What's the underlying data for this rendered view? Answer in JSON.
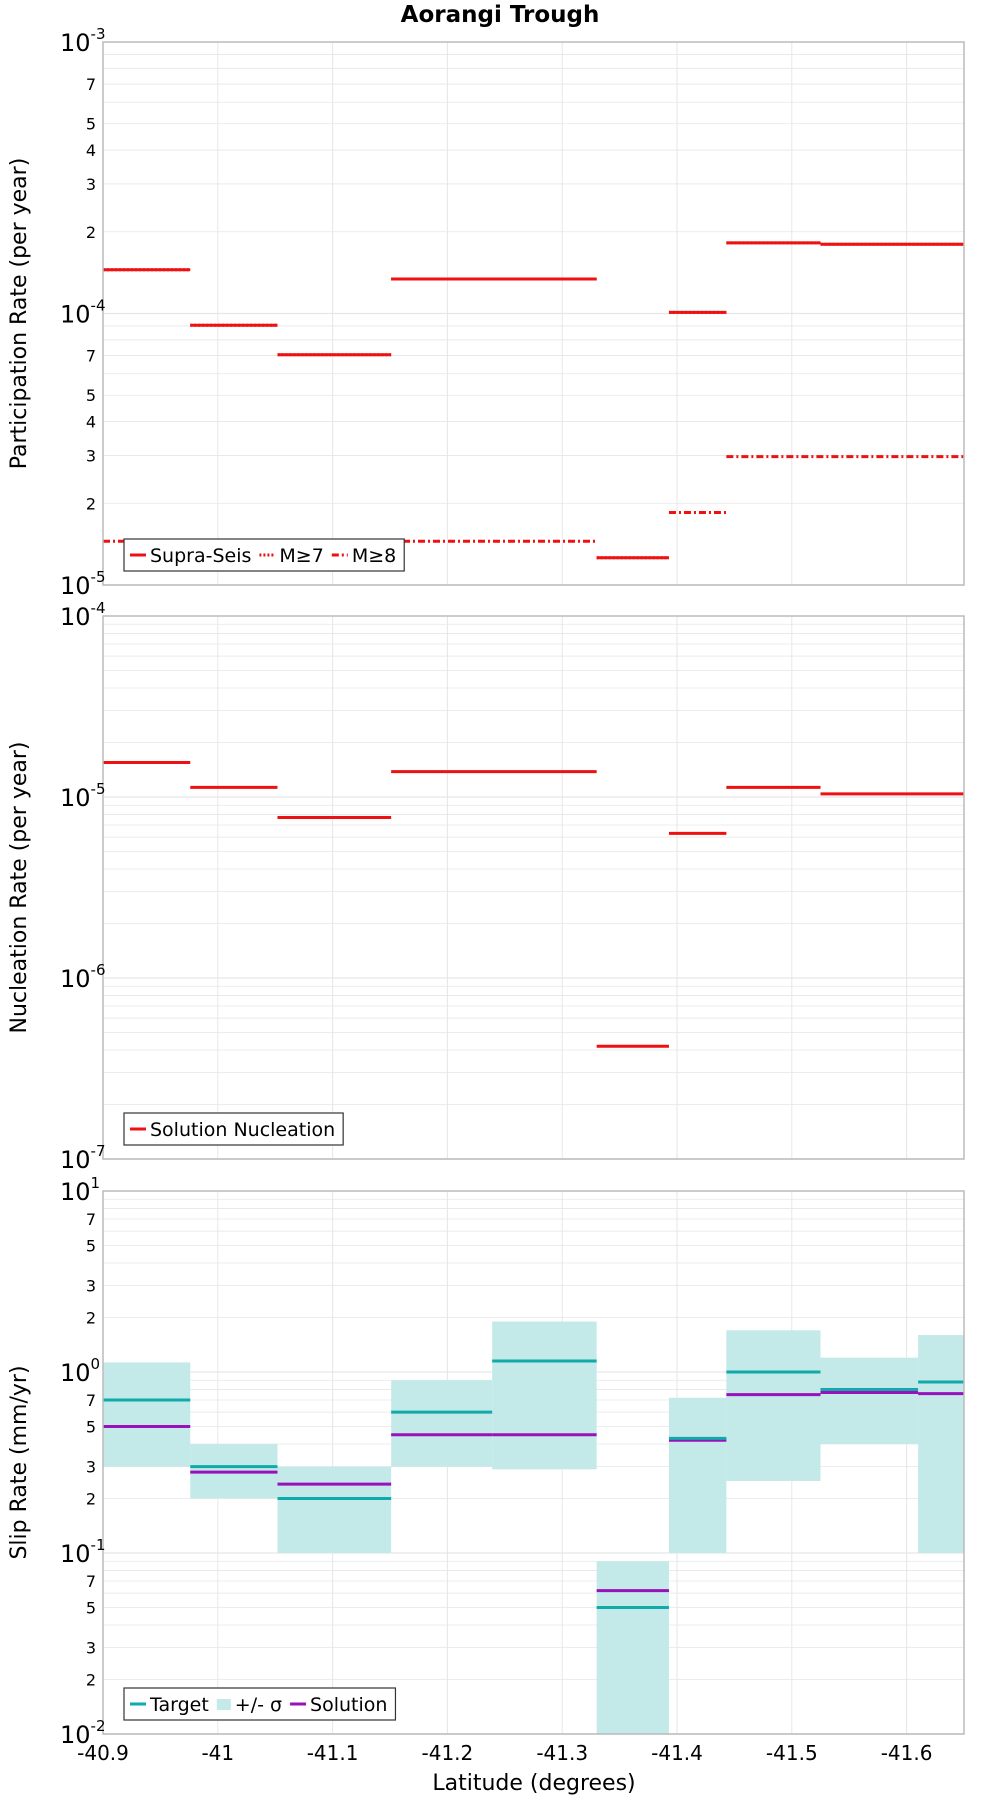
{
  "title": "Aorangi Trough",
  "xlabel": "Latitude (degrees)",
  "x_axis": {
    "range": [
      -40.9,
      -41.65
    ],
    "ticks": [
      {
        "value": -40.9,
        "label": "-40.9"
      },
      {
        "value": -41.0,
        "label": "-41"
      },
      {
        "value": -41.1,
        "label": "-41.1"
      },
      {
        "value": -41.2,
        "label": "-41.2"
      },
      {
        "value": -41.3,
        "label": "-41.3"
      },
      {
        "value": -41.4,
        "label": "-41.4"
      },
      {
        "value": -41.5,
        "label": "-41.5"
      },
      {
        "value": -41.6,
        "label": "-41.6"
      }
    ]
  },
  "colors": {
    "red": "#ee1111",
    "teal": "#11aaaa",
    "band": "#c3eae9",
    "purple": "#9911bb",
    "grid": "#e6e6e6",
    "frame": "#bbbbbb"
  },
  "chart_data": [
    {
      "type": "line",
      "ylabel": "Participation Rate (per year)",
      "yscale": "log",
      "ylim": [
        1e-05,
        0.001
      ],
      "ticks": [
        {
          "value": 1e-05,
          "base": "10",
          "exp": "-5"
        },
        {
          "value": 2e-05,
          "label": "2"
        },
        {
          "value": 3e-05,
          "label": "3"
        },
        {
          "value": 4e-05,
          "label": "4"
        },
        {
          "value": 5e-05,
          "label": "5"
        },
        {
          "value": 7e-05,
          "label": "7"
        },
        {
          "value": 0.0001,
          "base": "10",
          "exp": "-4"
        },
        {
          "value": 0.0002,
          "label": "2"
        },
        {
          "value": 0.0003,
          "label": "3"
        },
        {
          "value": 0.0004,
          "label": "4"
        },
        {
          "value": 0.0005,
          "label": "5"
        },
        {
          "value": 0.0007,
          "label": "7"
        },
        {
          "value": 0.001,
          "base": "10",
          "exp": "-3"
        }
      ],
      "legend": [
        {
          "label": "Supra-Seis",
          "style": "solid",
          "color": "#ee1111"
        },
        {
          "label": "M≥7",
          "style": "dotted",
          "color": "#ee1111"
        },
        {
          "label": "M≥8",
          "style": "dashdot",
          "color": "#ee1111"
        }
      ],
      "series": [
        {
          "name": "Supra-Seis",
          "style": "solid",
          "color": "#ee1111",
          "segments": [
            {
              "x0": -40.9,
              "x1": -40.976,
              "y": 0.000145
            },
            {
              "x0": -40.976,
              "x1": -41.052,
              "y": 9.05e-05
            },
            {
              "x0": -41.052,
              "x1": -41.151,
              "y": 7.05e-05
            },
            {
              "x0": -41.151,
              "x1": -41.33,
              "y": 0.000134
            },
            {
              "x0": -41.33,
              "x1": -41.393,
              "y": 1.26e-05
            },
            {
              "x0": -41.393,
              "x1": -41.443,
              "y": 0.000101
            },
            {
              "x0": -41.443,
              "x1": -41.525,
              "y": 0.000182
            },
            {
              "x0": -41.525,
              "x1": -41.65,
              "y": 0.00018
            }
          ]
        },
        {
          "name": "M≥7",
          "style": "dotted",
          "color": "#ee1111",
          "segments": [
            {
              "x0": -40.9,
              "x1": -40.976,
              "y": 0.000145
            },
            {
              "x0": -40.976,
              "x1": -41.052,
              "y": 9.05e-05
            },
            {
              "x0": -41.052,
              "x1": -41.151,
              "y": 7.05e-05
            },
            {
              "x0": -41.151,
              "x1": -41.33,
              "y": 0.000134
            },
            {
              "x0": -41.33,
              "x1": -41.393,
              "y": 1.26e-05
            },
            {
              "x0": -41.393,
              "x1": -41.443,
              "y": 0.000101
            },
            {
              "x0": -41.443,
              "x1": -41.525,
              "y": 0.000182
            },
            {
              "x0": -41.525,
              "x1": -41.65,
              "y": 0.00018
            }
          ]
        },
        {
          "name": "M≥8",
          "style": "dashdot",
          "color": "#ee1111",
          "segments": [
            {
              "x0": -40.9,
              "x1": -41.33,
              "y": 1.45e-05
            },
            {
              "x0": -41.393,
              "x1": -41.443,
              "y": 1.85e-05
            },
            {
              "x0": -41.443,
              "x1": -41.65,
              "y": 2.97e-05
            }
          ]
        }
      ]
    },
    {
      "type": "line",
      "ylabel": "Nucleation Rate (per year)",
      "yscale": "log",
      "ylim": [
        1e-07,
        0.0001
      ],
      "ticks": [
        {
          "value": 1e-07,
          "base": "10",
          "exp": "-7"
        },
        {
          "value": 1e-06,
          "base": "10",
          "exp": "-6"
        },
        {
          "value": 1e-05,
          "base": "10",
          "exp": "-5"
        },
        {
          "value": 0.0001,
          "base": "10",
          "exp": "-4"
        }
      ],
      "legend": [
        {
          "label": "Solution Nucleation",
          "style": "solid",
          "color": "#ee1111"
        }
      ],
      "series": [
        {
          "name": "Solution Nucleation",
          "style": "solid",
          "color": "#ee1111",
          "segments": [
            {
              "x0": -40.9,
              "x1": -40.976,
              "y": 1.55e-05
            },
            {
              "x0": -40.976,
              "x1": -41.052,
              "y": 1.13e-05
            },
            {
              "x0": -41.052,
              "x1": -41.151,
              "y": 7.7e-06
            },
            {
              "x0": -41.151,
              "x1": -41.33,
              "y": 1.38e-05
            },
            {
              "x0": -41.33,
              "x1": -41.393,
              "y": 4.2e-07
            },
            {
              "x0": -41.393,
              "x1": -41.443,
              "y": 6.3e-06
            },
            {
              "x0": -41.443,
              "x1": -41.525,
              "y": 1.13e-05
            },
            {
              "x0": -41.525,
              "x1": -41.65,
              "y": 1.04e-05
            }
          ]
        }
      ]
    },
    {
      "type": "line",
      "ylabel": "Slip Rate (mm/yr)",
      "yscale": "log",
      "ylim": [
        0.01,
        10
      ],
      "ticks": [
        {
          "value": 0.01,
          "base": "10",
          "exp": "-2"
        },
        {
          "value": 0.02,
          "label": "2"
        },
        {
          "value": 0.03,
          "label": "3"
        },
        {
          "value": 0.05,
          "label": "5"
        },
        {
          "value": 0.07,
          "label": "7"
        },
        {
          "value": 0.1,
          "base": "10",
          "exp": "-1"
        },
        {
          "value": 0.2,
          "label": "2"
        },
        {
          "value": 0.3,
          "label": "3"
        },
        {
          "value": 0.5,
          "label": "5"
        },
        {
          "value": 0.7,
          "label": "7"
        },
        {
          "value": 1,
          "base": "10",
          "exp": "0"
        },
        {
          "value": 2,
          "label": "2"
        },
        {
          "value": 3,
          "label": "3"
        },
        {
          "value": 5,
          "label": "5"
        },
        {
          "value": 7,
          "label": "7"
        },
        {
          "value": 10,
          "base": "10",
          "exp": "1"
        }
      ],
      "legend": [
        {
          "label": "Target",
          "style": "solid",
          "color": "#11aaaa"
        },
        {
          "label": "+/- σ",
          "style": "band",
          "color": "#c3eae9"
        },
        {
          "label": "Solution",
          "style": "solid",
          "color": "#9911bb"
        }
      ],
      "bands": {
        "name": "+/- σ",
        "color": "#c3eae9",
        "segments": [
          {
            "x0": -40.9,
            "x1": -40.976,
            "y0": 0.3,
            "y1": 1.13
          },
          {
            "x0": -40.976,
            "x1": -41.052,
            "y0": 0.2,
            "y1": 0.4
          },
          {
            "x0": -41.052,
            "x1": -41.151,
            "y0": 0.1,
            "y1": 0.3
          },
          {
            "x0": -41.151,
            "x1": -41.239,
            "y0": 0.3,
            "y1": 0.9
          },
          {
            "x0": -41.239,
            "x1": -41.33,
            "y0": 0.29,
            "y1": 1.9
          },
          {
            "x0": -41.33,
            "x1": -41.393,
            "y0": 0.01,
            "y1": 0.09
          },
          {
            "x0": -41.393,
            "x1": -41.443,
            "y0": 0.1,
            "y1": 0.72
          },
          {
            "x0": -41.443,
            "x1": -41.525,
            "y0": 0.25,
            "y1": 1.7
          },
          {
            "x0": -41.525,
            "x1": -41.61,
            "y0": 0.4,
            "y1": 1.2
          },
          {
            "x0": -41.61,
            "x1": -41.65,
            "y0": 0.1,
            "y1": 1.6
          }
        ]
      },
      "series": [
        {
          "name": "Target",
          "style": "solid",
          "color": "#11aaaa",
          "segments": [
            {
              "x0": -40.9,
              "x1": -40.976,
              "y": 0.7
            },
            {
              "x0": -40.976,
              "x1": -41.052,
              "y": 0.3
            },
            {
              "x0": -41.052,
              "x1": -41.151,
              "y": 0.2
            },
            {
              "x0": -41.151,
              "x1": -41.239,
              "y": 0.6
            },
            {
              "x0": -41.239,
              "x1": -41.33,
              "y": 1.15
            },
            {
              "x0": -41.33,
              "x1": -41.393,
              "y": 0.05
            },
            {
              "x0": -41.393,
              "x1": -41.443,
              "y": 0.43
            },
            {
              "x0": -41.443,
              "x1": -41.525,
              "y": 1.0
            },
            {
              "x0": -41.525,
              "x1": -41.61,
              "y": 0.8
            },
            {
              "x0": -41.61,
              "x1": -41.65,
              "y": 0.88
            }
          ]
        },
        {
          "name": "Solution",
          "style": "solid",
          "color": "#9911bb",
          "segments": [
            {
              "x0": -40.9,
              "x1": -40.976,
              "y": 0.5
            },
            {
              "x0": -40.976,
              "x1": -41.052,
              "y": 0.28
            },
            {
              "x0": -41.052,
              "x1": -41.151,
              "y": 0.24
            },
            {
              "x0": -41.151,
              "x1": -41.239,
              "y": 0.45
            },
            {
              "x0": -41.239,
              "x1": -41.33,
              "y": 0.45
            },
            {
              "x0": -41.33,
              "x1": -41.393,
              "y": 0.062
            },
            {
              "x0": -41.393,
              "x1": -41.443,
              "y": 0.42
            },
            {
              "x0": -41.443,
              "x1": -41.525,
              "y": 0.75
            },
            {
              "x0": -41.525,
              "x1": -41.61,
              "y": 0.77
            },
            {
              "x0": -41.61,
              "x1": -41.65,
              "y": 0.76
            }
          ]
        }
      ]
    }
  ]
}
